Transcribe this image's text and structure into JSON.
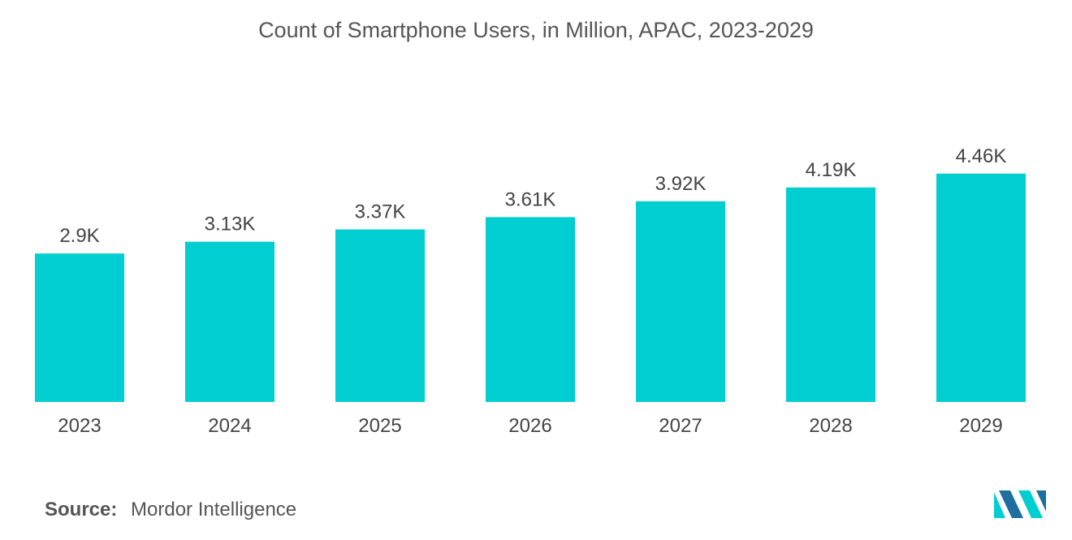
{
  "colors": {
    "bar": "#00CED1",
    "logo_dark": "#1E6FA0",
    "logo_light": "#00CED1"
  },
  "chart_data": {
    "type": "bar",
    "title": "Count of Smartphone Users, in Million, APAC, 2023-2029",
    "categories": [
      "2023",
      "2024",
      "2025",
      "2026",
      "2027",
      "2028",
      "2029"
    ],
    "values": [
      2.9,
      3.13,
      3.37,
      3.61,
      3.92,
      4.19,
      4.46
    ],
    "value_labels": [
      "2.9K",
      "3.13K",
      "3.37K",
      "3.61K",
      "3.92K",
      "4.19K",
      "4.46K"
    ],
    "xlabel": "",
    "ylabel": "",
    "ylim": [
      0,
      4.6
    ],
    "grid": false,
    "legend": "none"
  },
  "source": {
    "label": "Source:",
    "value": "Mordor Intelligence"
  },
  "logo": {
    "icon": "mordor-intelligence-logo-icon"
  }
}
